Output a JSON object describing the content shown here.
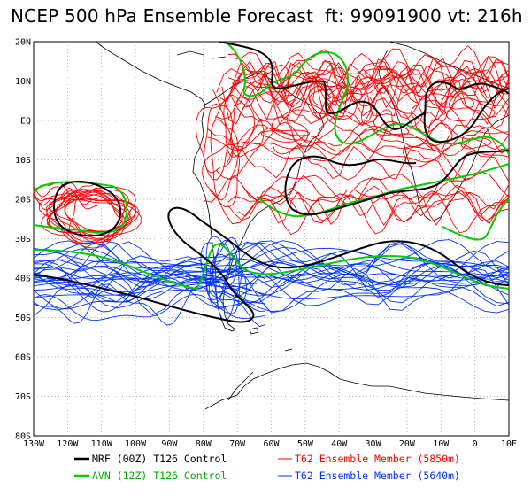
{
  "title": "NCEP 500 hPa Ensemble Forecast  ft: 99091900 vt: 216h",
  "lat_labels": [
    "20N",
    "10N",
    "EQ",
    "10S",
    "20S",
    "30S",
    "40S",
    "50S",
    "60S",
    "70S",
    "80S"
  ],
  "lon_labels": [
    "130W",
    "120W",
    "110W",
    "100W",
    "90W",
    "80W",
    "70W",
    "60W",
    "50W",
    "40W",
    "30W",
    "20W",
    "10W",
    "0",
    "10E"
  ],
  "legend": [
    {
      "label": "MRF (00Z) T126 Control",
      "color": "#000000"
    },
    {
      "label": "AVN (12Z) T126 Control",
      "color": "#00cc00"
    },
    {
      "label": "T62 Ensemble Member (5850m)",
      "color": "#ff0000"
    },
    {
      "label": "T62 Ensemble Member (5640m)",
      "color": "#0033ff"
    }
  ],
  "colors": {
    "mrf": "#000000",
    "avn": "#00cc00",
    "red": "#ff0000",
    "blue": "#0033ff",
    "grid": "#999999"
  },
  "map_extent": {
    "lon": [
      -130,
      10
    ],
    "lat": [
      -80,
      20
    ]
  }
}
